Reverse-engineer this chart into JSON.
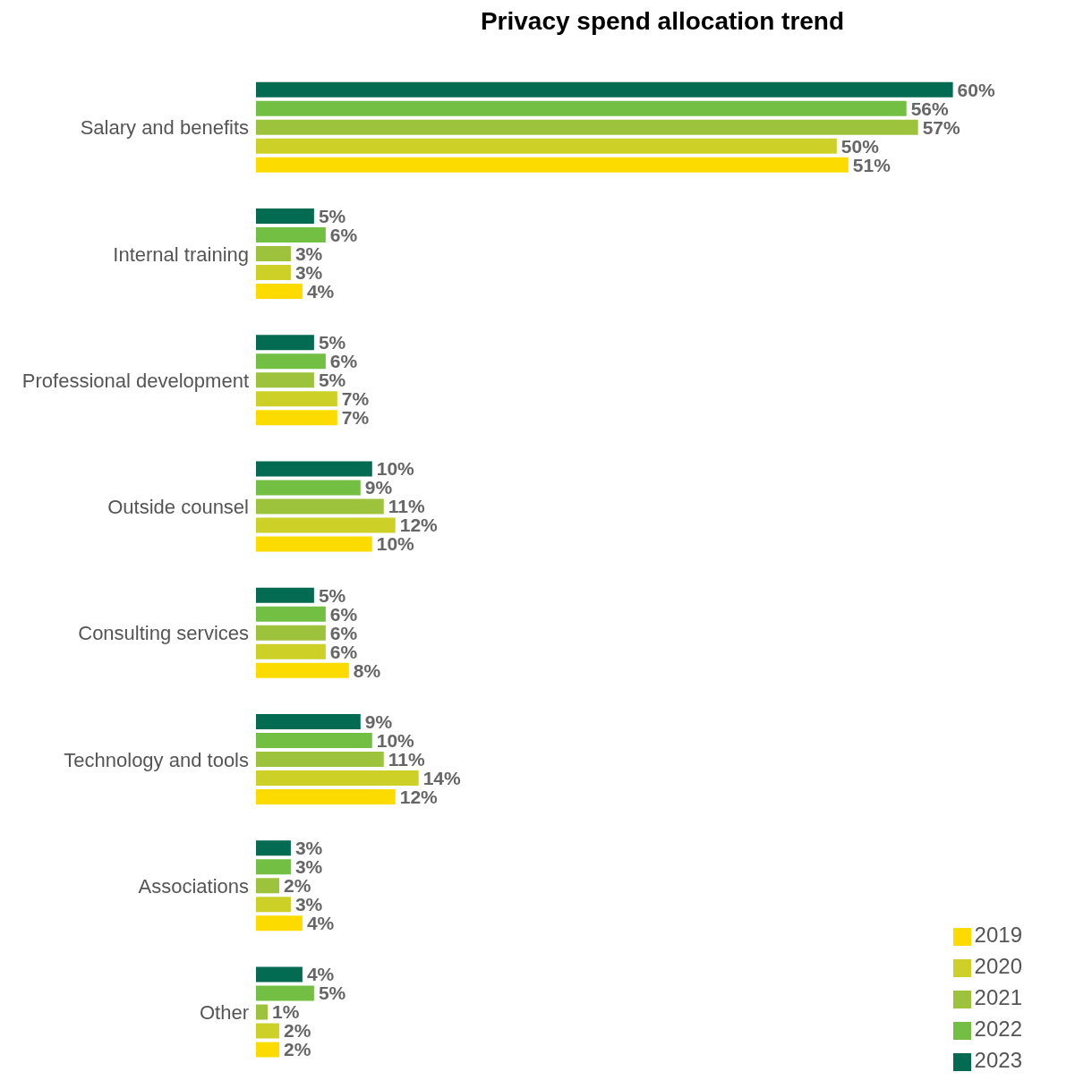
{
  "chart_data": {
    "type": "bar",
    "orientation": "horizontal",
    "title": "Privacy spend allocation trend",
    "categories": [
      "Salary and benefits",
      "Internal training",
      "Professional development",
      "Outside counsel",
      "Consulting services",
      "Technology and tools",
      "Associations",
      "Other"
    ],
    "series": [
      {
        "name": "2023",
        "color": "#036b52",
        "values": [
          60,
          5,
          5,
          10,
          5,
          9,
          3,
          4
        ],
        "value_labels": [
          "60%",
          "5%",
          "5%",
          "10%",
          "5%",
          "9%",
          "3%",
          "4%"
        ]
      },
      {
        "name": "2022",
        "color": "#72bf44",
        "values": [
          56,
          6,
          6,
          9,
          6,
          10,
          3,
          5
        ],
        "value_labels": [
          "56%",
          "6%",
          "6%",
          "9%",
          "6%",
          "10%",
          "3%",
          "5%"
        ]
      },
      {
        "name": "2021",
        "color": "#9dc23b",
        "values": [
          57,
          3,
          5,
          11,
          6,
          11,
          2,
          1
        ],
        "value_labels": [
          "57%",
          "3%",
          "5%",
          "11%",
          "6%",
          "11%",
          "2%",
          "1%"
        ]
      },
      {
        "name": "2020",
        "color": "#cdd026",
        "values": [
          50,
          3,
          7,
          12,
          6,
          14,
          3,
          2
        ],
        "value_labels": [
          "50%",
          "3%",
          "7%",
          "12%",
          "6%",
          "14%",
          "3%",
          "2%"
        ]
      },
      {
        "name": "2019",
        "color": "#fcdc00",
        "values": [
          51,
          4,
          7,
          10,
          8,
          12,
          4,
          2
        ],
        "value_labels": [
          "51%",
          "4%",
          "7%",
          "10%",
          "8%",
          "12%",
          "4%",
          "2%"
        ]
      }
    ],
    "legend": "bottom right",
    "grid": false,
    "tick_labels": "y"
  }
}
